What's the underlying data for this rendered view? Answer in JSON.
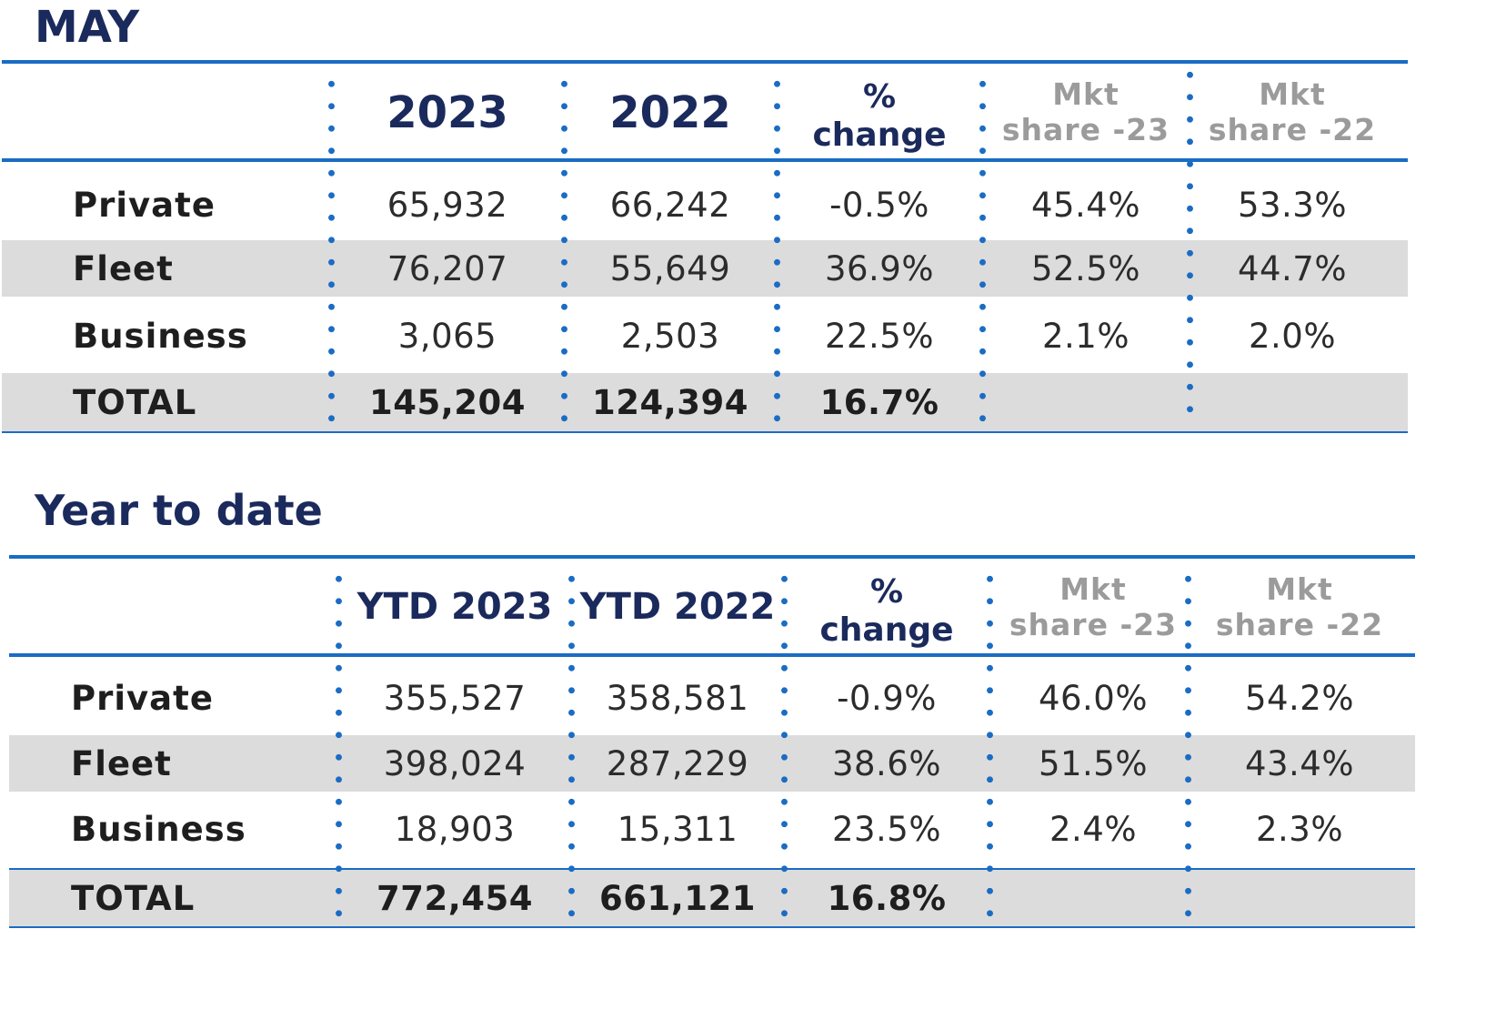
{
  "may": {
    "title": "MAY",
    "header": {
      "col1": "2023",
      "col2": "2022",
      "pct_line1": "%",
      "pct_line2": "change",
      "mkt23_line1": "Mkt",
      "mkt23_line2": "share -23",
      "mkt22_line1": "Mkt",
      "mkt22_line2": "share -22"
    },
    "rows": [
      {
        "label": "Private",
        "v2023": "65,932",
        "v2022": "66,242",
        "change": "-0.5%",
        "share23": "45.4%",
        "share22": "53.3%"
      },
      {
        "label": "Fleet",
        "v2023": "76,207",
        "v2022": "55,649",
        "change": "36.9%",
        "share23": "52.5%",
        "share22": "44.7%"
      },
      {
        "label": "Business",
        "v2023": "3,065",
        "v2022": "2,503",
        "change": "22.5%",
        "share23": "2.1%",
        "share22": "2.0%"
      }
    ],
    "total": {
      "label": "TOTAL",
      "v2023": "145,204",
      "v2022": "124,394",
      "change": "16.7%"
    }
  },
  "ytd": {
    "title": "Year to date",
    "header": {
      "col1": "YTD 2023",
      "col2": "YTD 2022",
      "pct_line1": "%",
      "pct_line2": "change",
      "mkt23_line1": "Mkt",
      "mkt23_line2": "share -23",
      "mkt22_line1": "Mkt",
      "mkt22_line2": "share -22"
    },
    "rows": [
      {
        "label": "Private",
        "v2023": "355,527",
        "v2022": "358,581",
        "change": "-0.9%",
        "share23": "46.0%",
        "share22": "54.2%"
      },
      {
        "label": "Fleet",
        "v2023": "398,024",
        "v2022": "287,229",
        "change": "38.6%",
        "share23": "51.5%",
        "share22": "43.4%"
      },
      {
        "label": "Business",
        "v2023": "18,903",
        "v2022": "15,311",
        "change": "23.5%",
        "share23": "2.4%",
        "share22": "2.3%"
      }
    ],
    "total": {
      "label": "TOTAL",
      "v2023": "772,454",
      "v2022": "661,121",
      "change": "16.8%"
    }
  },
  "colors": {
    "accent": "#1a6cc4",
    "heading": "#1b2a5c",
    "muted": "#9b9b9b",
    "shade": "#dcdcdc"
  }
}
